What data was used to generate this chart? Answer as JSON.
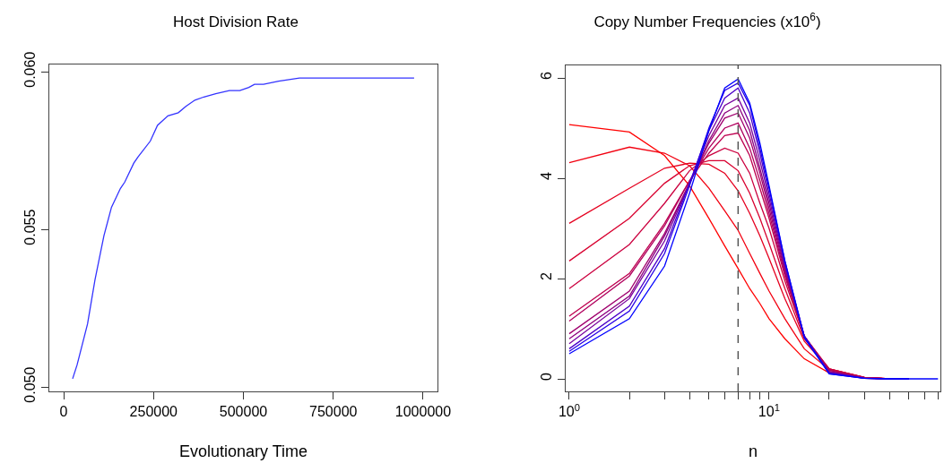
{
  "chart_data": [
    {
      "type": "line",
      "title": "Host Division Rate",
      "xlabel": "Evolutionary Time",
      "x": [
        24900,
        37300,
        66400,
        87100,
        112000,
        133000,
        158000,
        170000,
        195000,
        207000,
        241000,
        261000,
        290000,
        319000,
        340000,
        365000,
        390000,
        423000,
        461000,
        490000,
        515000,
        531000,
        556000,
        598000,
        656000,
        705000,
        788000,
        838000,
        905000,
        975000
      ],
      "series": [
        {
          "color": "#3333ff",
          "values": [
            0.05026,
            0.0507,
            0.052,
            0.0534,
            0.0548,
            0.0557,
            0.0563,
            0.0565,
            0.0571,
            0.0573,
            0.0578,
            0.0583,
            0.0586,
            0.0587,
            0.0589,
            0.0591,
            0.0592,
            0.0593,
            0.0594,
            0.0594,
            0.0595,
            0.0596,
            0.0596,
            0.0597,
            0.0598,
            0.0598,
            0.0598,
            0.0598,
            0.0598,
            0.0598
          ]
        }
      ],
      "xlim": [
        -40000,
        1040000
      ],
      "ylim": [
        0.04986,
        0.06023
      ],
      "xticks": [
        0,
        250000,
        500000,
        750000,
        1000000
      ],
      "yticks": [
        {
          "value": 0.05,
          "label": "0.050"
        },
        0.055,
        {
          "value": 0.06,
          "label": "0.060"
        }
      ]
    },
    {
      "type": "line",
      "title": "Copy Number Frequencies (x10$^{6}$)",
      "xlabel": "n",
      "log": "x",
      "x": [
        1,
        2,
        3,
        4,
        5,
        6,
        7,
        8,
        9,
        10,
        12,
        15,
        20,
        30,
        40,
        50,
        60,
        70
      ],
      "series": [
        {
          "color": "#ff0000",
          "values": [
            5.07,
            4.92,
            4.45,
            3.85,
            3.2,
            2.65,
            2.2,
            1.8,
            1.5,
            1.2,
            0.8,
            0.4,
            0.12,
            0.02,
            0,
            0,
            null,
            null
          ]
        },
        {
          "color": "#f20010",
          "values": [
            4.31,
            4.62,
            4.5,
            4.25,
            3.8,
            3.35,
            2.96,
            2.5,
            2.1,
            1.75,
            1.2,
            0.6,
            0.18,
            0.03,
            0,
            0,
            null,
            null
          ]
        },
        {
          "color": "#e5001f",
          "values": [
            3.1,
            3.8,
            4.2,
            4.3,
            4.28,
            4.1,
            3.75,
            3.3,
            2.85,
            2.4,
            1.6,
            0.75,
            0.2,
            0.03,
            0,
            0,
            null,
            null
          ]
        },
        {
          "color": "#d8002f",
          "values": [
            2.35,
            3.2,
            3.9,
            4.25,
            4.35,
            4.35,
            4.15,
            3.7,
            3.2,
            2.7,
            1.8,
            0.8,
            0.2,
            0.03,
            0,
            0,
            null,
            null
          ]
        },
        {
          "color": "#cb003f",
          "values": [
            1.8,
            2.68,
            3.5,
            4.15,
            4.45,
            4.6,
            4.5,
            4.1,
            3.5,
            3,
            1.95,
            0.85,
            0.2,
            0.03,
            0,
            0,
            null,
            null
          ]
        },
        {
          "color": "#be004f",
          "values": [
            1.25,
            2.1,
            3.1,
            3.95,
            4.5,
            4.85,
            4.9,
            4.45,
            3.8,
            3.2,
            2.05,
            0.85,
            0.18,
            0.02,
            0,
            0,
            null,
            null
          ]
        },
        {
          "color": "#b1005e",
          "values": [
            1.15,
            2.05,
            3.05,
            3.95,
            4.6,
            5,
            5.1,
            4.6,
            3.95,
            3.3,
            2.1,
            0.85,
            0.17,
            0.02,
            0,
            0,
            null,
            null
          ]
        },
        {
          "color": "#a0006e",
          "values": [
            0.9,
            1.75,
            2.9,
            3.9,
            4.7,
            5.2,
            5.3,
            4.8,
            4.1,
            3.4,
            2.15,
            0.85,
            0.15,
            0.02,
            0,
            0,
            null,
            null
          ]
        },
        {
          "color": "#8c007e",
          "values": [
            0.8,
            1.65,
            2.85,
            3.9,
            4.75,
            5.3,
            5.45,
            4.95,
            4.2,
            3.5,
            2.2,
            0.85,
            0.14,
            0.02,
            0,
            0,
            null,
            null
          ]
        },
        {
          "color": "#78009e",
          "values": [
            0.7,
            1.6,
            2.75,
            3.9,
            4.85,
            5.45,
            5.6,
            5.1,
            4.35,
            3.6,
            2.25,
            0.85,
            0.13,
            0.01,
            0,
            0,
            null,
            null
          ]
        },
        {
          "color": "#4b00c8",
          "values": [
            0.6,
            1.45,
            2.6,
            3.9,
            4.95,
            5.6,
            5.8,
            5.3,
            4.5,
            3.7,
            2.3,
            0.85,
            0.12,
            0.01,
            0,
            0,
            null,
            null
          ]
        },
        {
          "color": "#2800e6",
          "values": [
            0.55,
            1.35,
            2.5,
            3.85,
            5,
            5.75,
            5.9,
            5.45,
            4.6,
            3.8,
            2.35,
            0.85,
            0.1,
            0.01,
            0,
            0,
            null,
            null
          ]
        },
        {
          "color": "#0000ff",
          "values": [
            0.5,
            1.2,
            2.25,
            3.7,
            4.95,
            5.8,
            5.98,
            5.5,
            4.7,
            3.85,
            2.35,
            0.82,
            0.1,
            0.01,
            0,
            0,
            0,
            0
          ]
        }
      ],
      "xlim": [
        0.96,
        72
      ],
      "ylim": [
        -0.25,
        6.25
      ],
      "xticks": [
        {
          "value": 1,
          "label": "10$^{0}$"
        },
        {
          "value": 2,
          "label": null
        },
        {
          "value": 3,
          "label": null
        },
        {
          "value": 4,
          "label": null
        },
        {
          "value": 5,
          "label": null
        },
        {
          "value": 6,
          "label": null
        },
        {
          "value": 7,
          "label": null
        },
        {
          "value": 8,
          "label": null
        },
        {
          "value": 9,
          "label": null
        },
        {
          "value": 10,
          "label": "10$^{1}$"
        },
        {
          "value": 20,
          "label": null
        },
        {
          "value": 30,
          "label": null
        },
        {
          "value": 40,
          "label": null
        },
        {
          "value": 50,
          "label": null
        },
        {
          "value": 60,
          "label": null
        },
        {
          "value": 70,
          "label": null
        }
      ],
      "yticks": [
        0,
        2,
        4,
        6
      ],
      "ref_lines": [
        {
          "axis": "x",
          "value": 7,
          "color": "#555555",
          "line_style": "dashed"
        }
      ]
    }
  ]
}
